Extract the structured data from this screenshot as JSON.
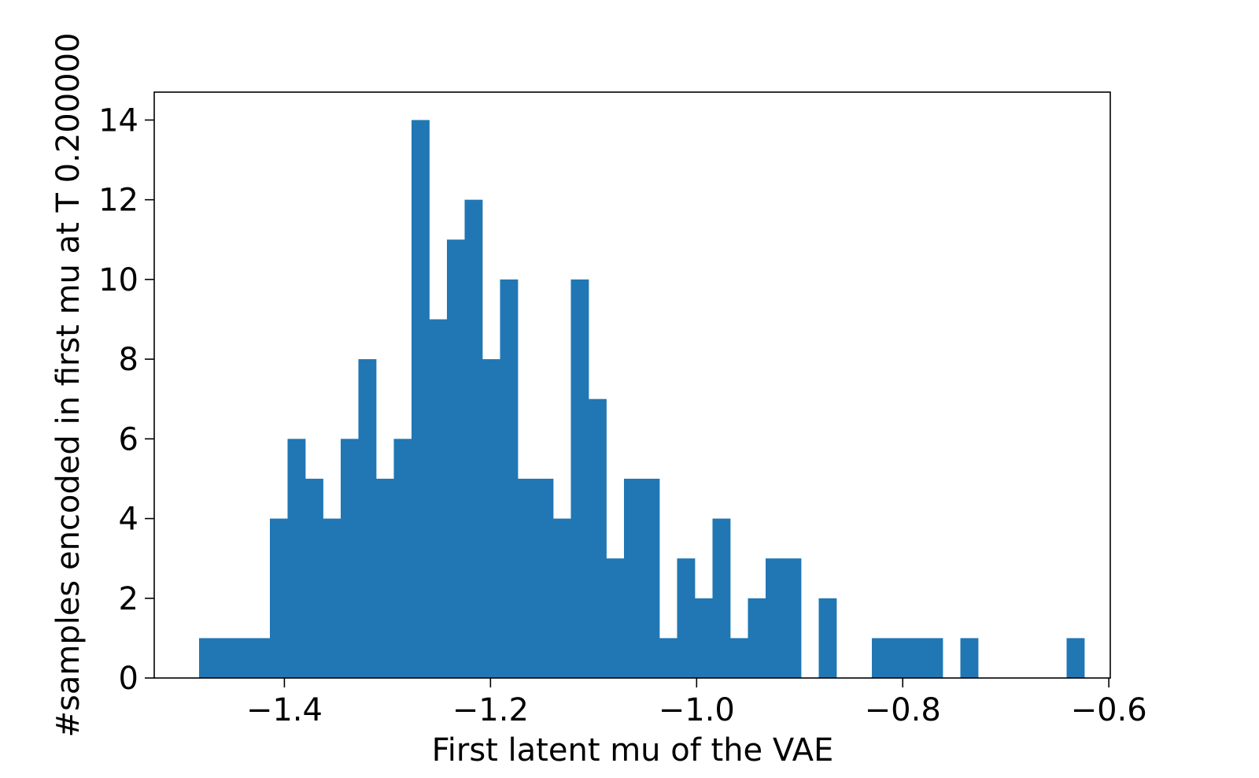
{
  "chart_data": {
    "type": "bar",
    "subtype": "histogram",
    "title": "",
    "xlabel": "First latent mu of the VAE",
    "ylabel": "#samples encoded in first mu at T 0.200000",
    "xlim": [
      -1.5263,
      -0.5986
    ],
    "ylim": [
      0,
      14.7
    ],
    "x_ticks": [
      -1.4,
      -1.2,
      -1.0,
      -0.8,
      -0.6
    ],
    "x_tick_labels": [
      "−1.4",
      "−1.2",
      "−1.0",
      "−0.8",
      "−0.6"
    ],
    "y_ticks": [
      0,
      2,
      4,
      6,
      8,
      10,
      12,
      14
    ],
    "y_tick_labels": [
      "0",
      "2",
      "4",
      "6",
      "8",
      "10",
      "12",
      "14"
    ],
    "bin_start": -1.4828,
    "bin_width": 0.01718,
    "bins": 50,
    "values": [
      1,
      1,
      1,
      1,
      4,
      6,
      5,
      4,
      6,
      8,
      5,
      6,
      14,
      9,
      11,
      12,
      8,
      10,
      5,
      5,
      4,
      10,
      7,
      3,
      5,
      5,
      1,
      3,
      2,
      4,
      1,
      2,
      3,
      3,
      0,
      2,
      0,
      0,
      1,
      1,
      1,
      1,
      0,
      1,
      0,
      0,
      0,
      0,
      0,
      1
    ],
    "grid": false,
    "legend": "none",
    "colors": {
      "bar": "#2077b4",
      "axes": "#000000",
      "background": "#ffffff"
    }
  }
}
